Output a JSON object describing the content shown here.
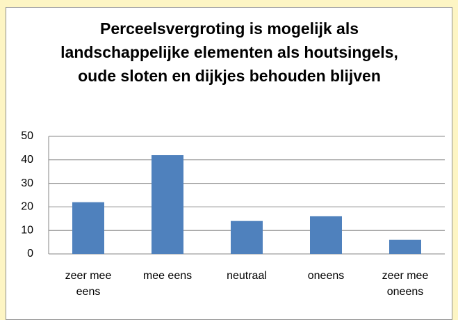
{
  "chart_data": {
    "type": "bar",
    "title": "Perceelsvergroting is mogelijk als landschappelijke elementen als houtsingels, oude sloten en dijkjes behouden blijven",
    "categories": [
      "zeer mee eens",
      "mee eens",
      "neutraal",
      "oneens",
      "zeer mee oneens"
    ],
    "values": [
      22,
      42,
      14,
      16,
      6
    ],
    "color": "#4f81bd",
    "ylim": [
      0,
      50
    ],
    "yticks": [
      0,
      10,
      20,
      30,
      40,
      50
    ],
    "grid": true
  }
}
